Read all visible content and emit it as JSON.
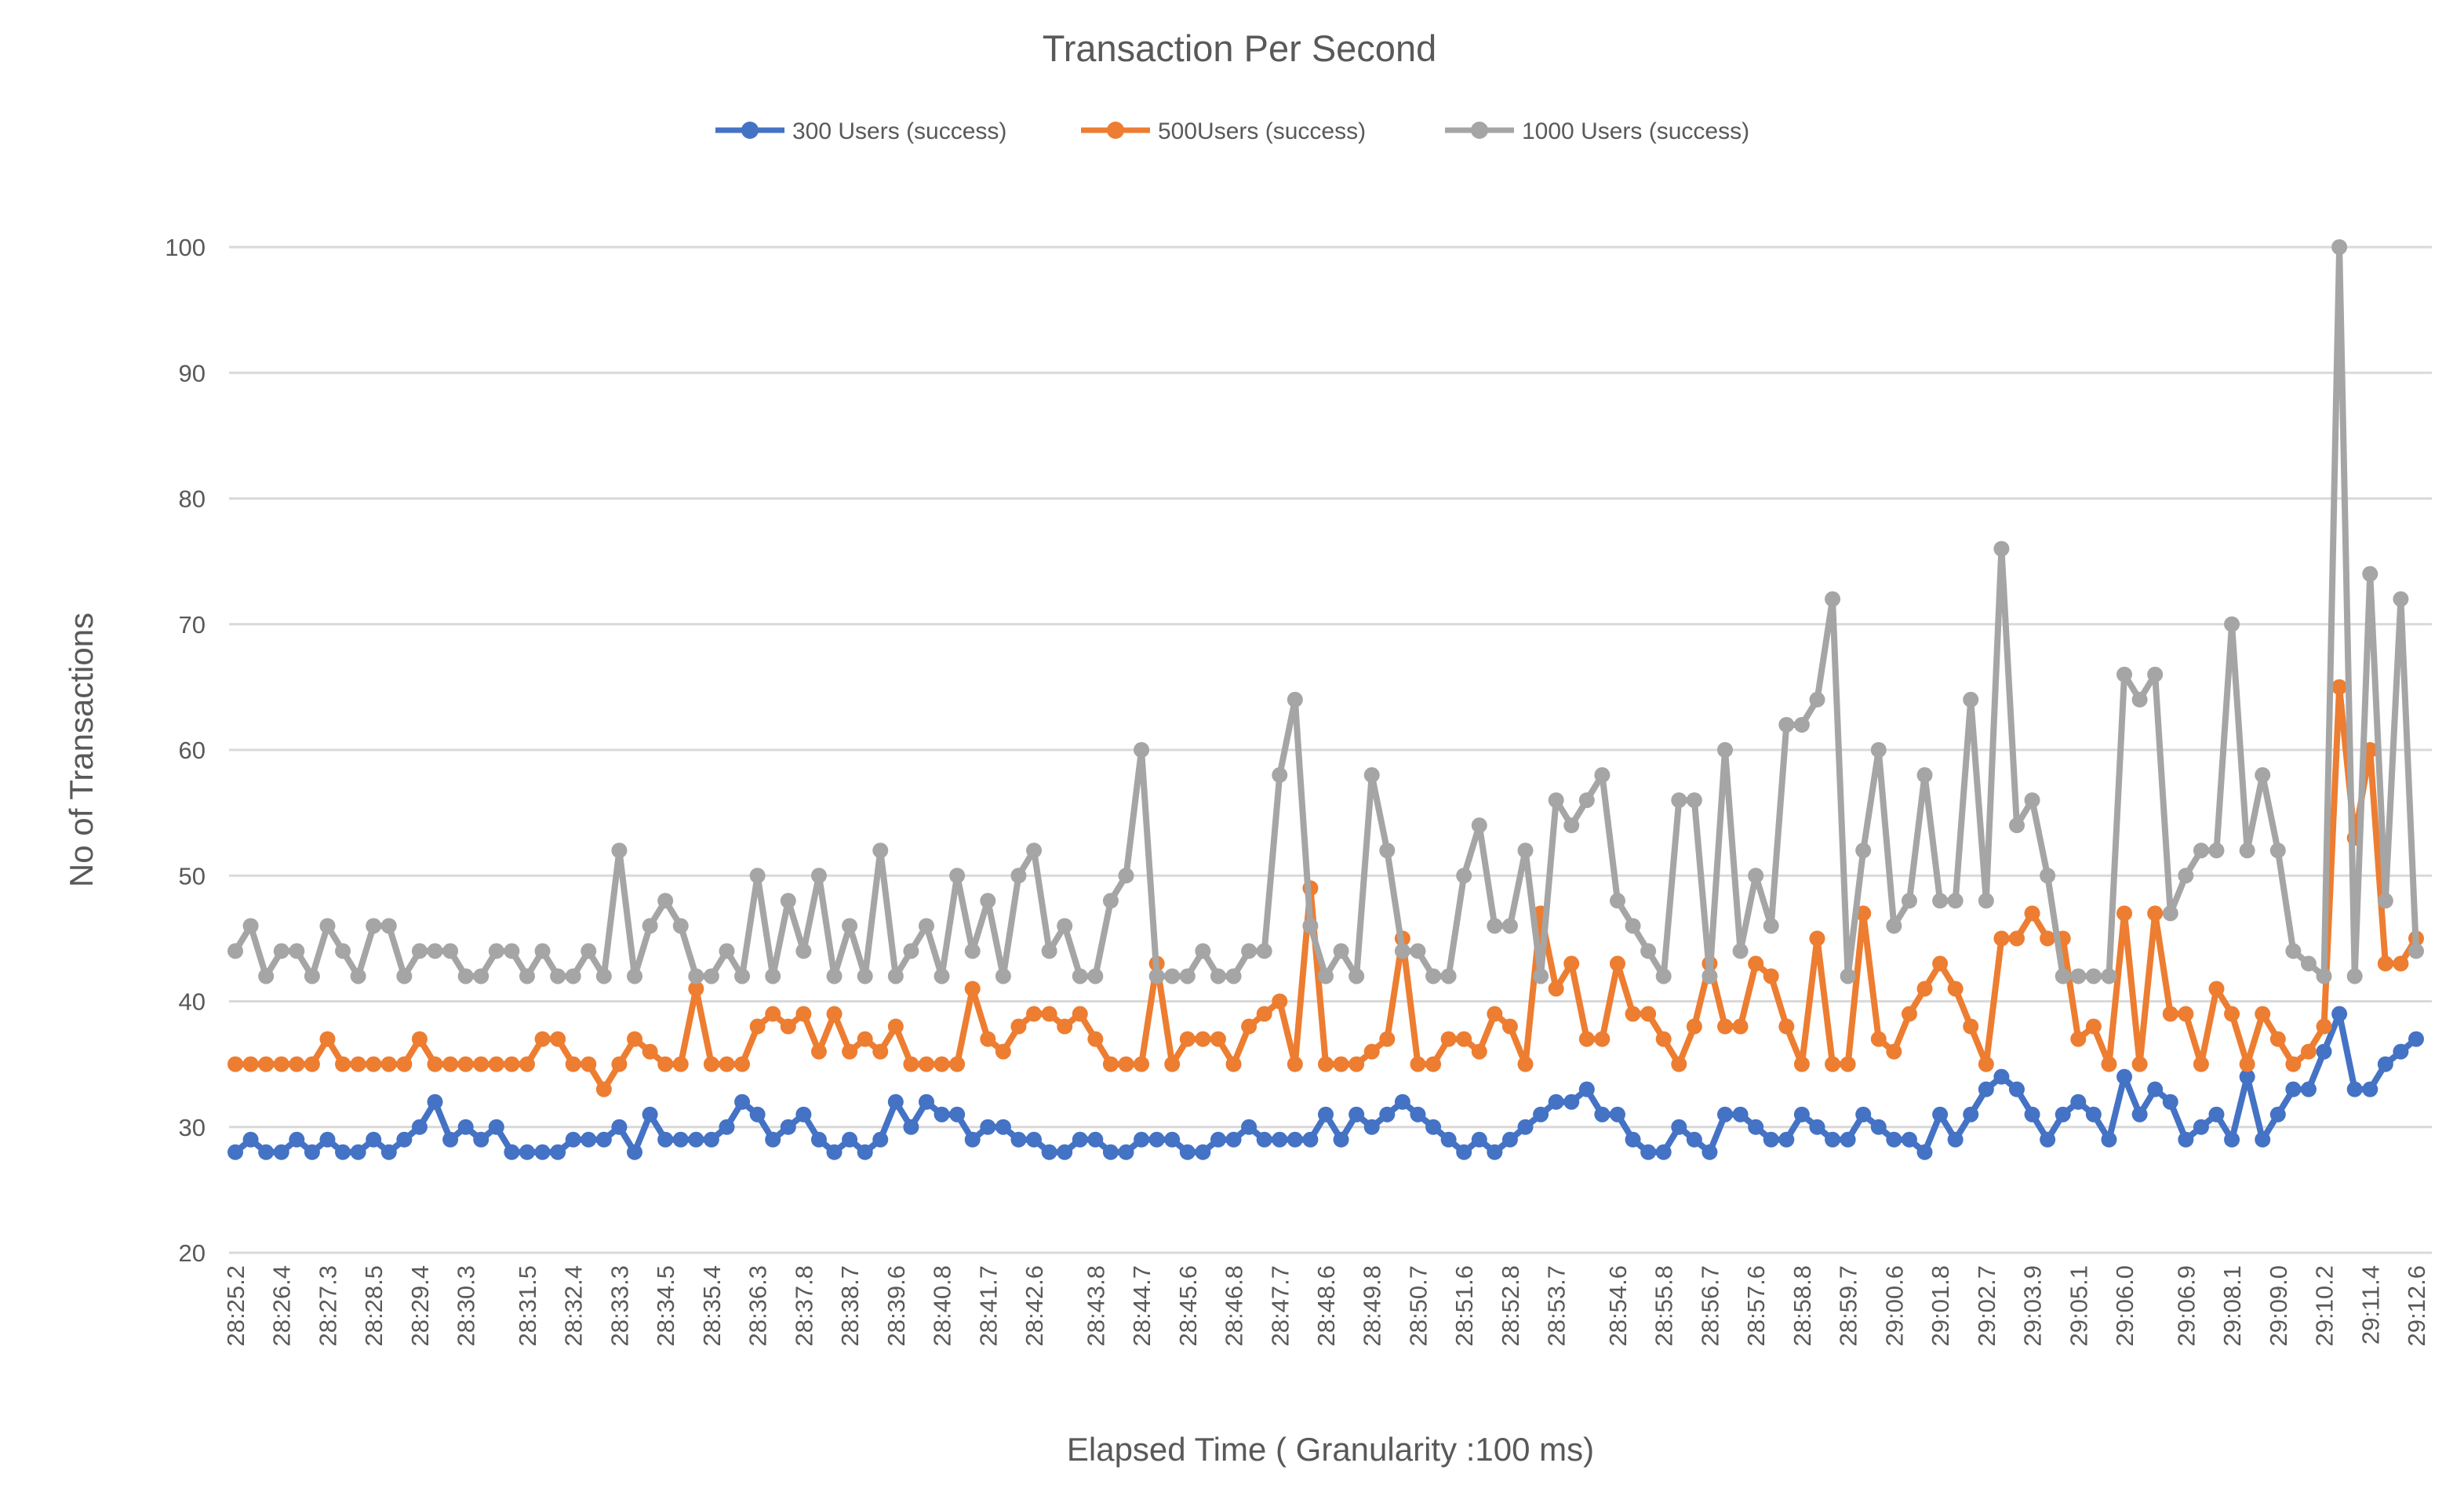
{
  "chart_data": {
    "type": "line",
    "title": "Transaction Per Second",
    "xlabel": "Elapsed Time ( Granularity :100 ms)",
    "ylabel": "No of Transactions",
    "ylim": [
      20,
      100
    ],
    "yticks": [
      20,
      30,
      40,
      50,
      60,
      70,
      80,
      90,
      100
    ],
    "grid": true,
    "legend_position": "top",
    "background": "#ffffff",
    "gridline_color": "#d9d9d9",
    "text_color": "#595959",
    "xticklabels": [
      "28:25.2",
      "28:26.4",
      "28:27.3",
      "28:28.5",
      "28:29.4",
      "28:30.3",
      "28:31.5",
      "28:32.4",
      "28:33.3",
      "28:34.5",
      "28:35.4",
      "28:36.3",
      "28:37.8",
      "28:38.7",
      "28:39.6",
      "28:40.8",
      "28:41.7",
      "28:42.6",
      "28:43.8",
      "28:44.7",
      "28:45.6",
      "28:46.8",
      "28:47.7",
      "28:48.6",
      "28:49.8",
      "28:50.7",
      "28:51.6",
      "28:52.8",
      "28:53.7",
      "28:54.6",
      "28:55.8",
      "28:56.7",
      "28:57.6",
      "28:58.8",
      "28:59.7",
      "29:00.6",
      "29:01.8",
      "29:02.7",
      "29:03.9",
      "29:05.1",
      "29:06.0",
      "29:06.9",
      "29:08.1",
      "29:09.0",
      "29:10.2",
      "29:11.4",
      "29:12.6"
    ],
    "series": [
      {
        "name": "300 Users (success)",
        "color": "#4472C4",
        "values": [
          28,
          29,
          28,
          28,
          29,
          28,
          29,
          28,
          28,
          29,
          28,
          29,
          30,
          32,
          29,
          30,
          29,
          30,
          28,
          28,
          28,
          28,
          29,
          29,
          29,
          30,
          28,
          31,
          29,
          29,
          29,
          29,
          30,
          32,
          31,
          29,
          30,
          31,
          29,
          28,
          29,
          28,
          29,
          32,
          30,
          32,
          31,
          31,
          29,
          30,
          30,
          29,
          29,
          28,
          28,
          29,
          29,
          28,
          28,
          29,
          29,
          29,
          28,
          28,
          29,
          29,
          30,
          29,
          29,
          29,
          29,
          31,
          29,
          31,
          30,
          31,
          32,
          31,
          30,
          29,
          28,
          29,
          28,
          29,
          30,
          31,
          32,
          32,
          33,
          31,
          31,
          29,
          28,
          28,
          30,
          29,
          28,
          31,
          31,
          30,
          29,
          29,
          31,
          30,
          29,
          29,
          31,
          30,
          29,
          29,
          28,
          31,
          29,
          31,
          33,
          34,
          33,
          31,
          29,
          31,
          32,
          31,
          29,
          34,
          31,
          33,
          32,
          29,
          30,
          31,
          29,
          34,
          29,
          31,
          33,
          33,
          36,
          39,
          33,
          33,
          35,
          36,
          37
        ]
      },
      {
        "name": "500Users (success)",
        "color": "#ED7D31",
        "values": [
          35,
          35,
          35,
          35,
          35,
          35,
          37,
          35,
          35,
          35,
          35,
          35,
          37,
          35,
          35,
          35,
          35,
          35,
          35,
          35,
          37,
          37,
          35,
          35,
          33,
          35,
          37,
          36,
          35,
          35,
          41,
          35,
          35,
          35,
          38,
          39,
          38,
          39,
          36,
          39,
          36,
          37,
          36,
          38,
          35,
          35,
          35,
          35,
          41,
          37,
          36,
          38,
          39,
          39,
          38,
          39,
          37,
          35,
          35,
          35,
          43,
          35,
          37,
          37,
          37,
          35,
          38,
          39,
          40,
          35,
          49,
          35,
          35,
          35,
          36,
          37,
          45,
          35,
          35,
          37,
          37,
          36,
          39,
          38,
          35,
          47,
          41,
          43,
          37,
          37,
          43,
          39,
          39,
          37,
          35,
          38,
          43,
          38,
          38,
          43,
          42,
          38,
          35,
          45,
          35,
          35,
          47,
          37,
          36,
          39,
          41,
          43,
          41,
          38,
          35,
          45,
          45,
          47,
          45,
          45,
          37,
          38,
          35,
          47,
          35,
          47,
          39,
          39,
          35,
          41,
          39,
          35,
          39,
          37,
          35,
          36,
          38,
          65,
          53,
          60,
          43,
          43,
          45
        ]
      },
      {
        "name": "1000 Users (success)",
        "color": "#A5A5A5",
        "values": [
          44,
          46,
          42,
          44,
          44,
          42,
          46,
          44,
          42,
          46,
          46,
          42,
          44,
          44,
          44,
          42,
          42,
          44,
          44,
          42,
          44,
          42,
          42,
          44,
          42,
          52,
          42,
          46,
          48,
          46,
          42,
          42,
          44,
          42,
          50,
          42,
          48,
          44,
          50,
          42,
          46,
          42,
          52,
          42,
          44,
          46,
          42,
          50,
          44,
          48,
          42,
          50,
          52,
          44,
          46,
          42,
          42,
          48,
          50,
          60,
          42,
          42,
          42,
          44,
          42,
          42,
          44,
          44,
          58,
          64,
          46,
          42,
          44,
          42,
          58,
          52,
          44,
          44,
          42,
          42,
          50,
          54,
          46,
          46,
          52,
          42,
          56,
          54,
          56,
          58,
          48,
          46,
          44,
          42,
          56,
          56,
          42,
          60,
          44,
          50,
          46,
          62,
          62,
          64,
          72,
          42,
          52,
          60,
          46,
          48,
          58,
          48,
          48,
          64,
          48,
          76,
          54,
          56,
          50,
          42,
          42,
          42,
          42,
          66,
          64,
          66,
          47,
          50,
          52,
          52,
          70,
          52,
          58,
          52,
          44,
          43,
          42,
          100,
          42,
          74,
          48,
          72,
          44
        ]
      }
    ]
  }
}
